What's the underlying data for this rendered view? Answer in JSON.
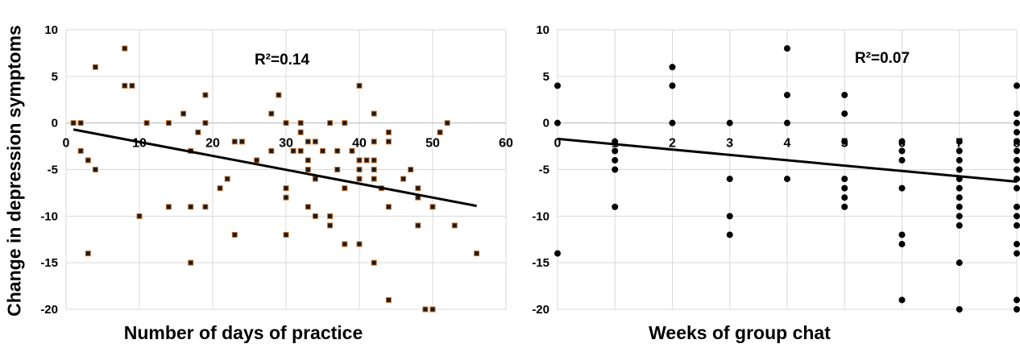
{
  "shared_ylabel": "Change in depression symptoms",
  "chart_data": [
    {
      "type": "scatter",
      "xlabel": "Number of days of practice",
      "ylabel": "Change in depression symptoms",
      "annotation": "R²=0.14",
      "xlim": [
        0,
        60
      ],
      "ylim": [
        -20,
        10
      ],
      "xticks": [
        0,
        10,
        20,
        30,
        40,
        50,
        60
      ],
      "yticks": [
        10,
        5,
        0,
        -5,
        -10,
        -15,
        -20
      ],
      "grid": true,
      "marker_color": "#1a1a1a",
      "marker_edge": "#c8702a",
      "trendline": {
        "x": [
          1,
          56
        ],
        "y": [
          -0.7,
          -8.9
        ]
      },
      "points": [
        [
          1,
          0
        ],
        [
          2,
          0
        ],
        [
          2,
          -3
        ],
        [
          3,
          -4
        ],
        [
          3,
          -14
        ],
        [
          4,
          6
        ],
        [
          4,
          -5
        ],
        [
          8,
          8
        ],
        [
          8,
          4
        ],
        [
          9,
          4
        ],
        [
          10,
          -10
        ],
        [
          11,
          0
        ],
        [
          14,
          0
        ],
        [
          14,
          -9
        ],
        [
          16,
          1
        ],
        [
          17,
          -3
        ],
        [
          17,
          -9
        ],
        [
          17,
          -15
        ],
        [
          18,
          -1
        ],
        [
          19,
          3
        ],
        [
          19,
          0
        ],
        [
          19,
          -9
        ],
        [
          21,
          -7
        ],
        [
          22,
          -6
        ],
        [
          23,
          -2
        ],
        [
          23,
          -12
        ],
        [
          24,
          -2
        ],
        [
          26,
          -4
        ],
        [
          28,
          1
        ],
        [
          28,
          -3
        ],
        [
          29,
          3
        ],
        [
          30,
          0
        ],
        [
          30,
          -7
        ],
        [
          30,
          -8
        ],
        [
          30,
          -12
        ],
        [
          31,
          -3
        ],
        [
          32,
          -1
        ],
        [
          32,
          0
        ],
        [
          32,
          -3
        ],
        [
          33,
          -2
        ],
        [
          33,
          -4
        ],
        [
          33,
          -5
        ],
        [
          33,
          -9
        ],
        [
          34,
          -2
        ],
        [
          34,
          -6
        ],
        [
          34,
          -10
        ],
        [
          35,
          -3
        ],
        [
          36,
          0
        ],
        [
          36,
          -10
        ],
        [
          36,
          -11
        ],
        [
          37,
          -3
        ],
        [
          37,
          -5
        ],
        [
          38,
          0
        ],
        [
          38,
          -7
        ],
        [
          38,
          -13
        ],
        [
          39,
          -3
        ],
        [
          40,
          4
        ],
        [
          40,
          -4
        ],
        [
          40,
          -5
        ],
        [
          40,
          -6
        ],
        [
          40,
          -13
        ],
        [
          41,
          -4
        ],
        [
          42,
          1
        ],
        [
          42,
          -2
        ],
        [
          42,
          -4
        ],
        [
          42,
          -5
        ],
        [
          42,
          -6
        ],
        [
          42,
          -15
        ],
        [
          43,
          -7
        ],
        [
          44,
          -1
        ],
        [
          44,
          -2
        ],
        [
          44,
          -9
        ],
        [
          44,
          -19
        ],
        [
          46,
          -6
        ],
        [
          47,
          -5
        ],
        [
          48,
          -7
        ],
        [
          48,
          -8
        ],
        [
          48,
          -11
        ],
        [
          49,
          -20
        ],
        [
          50,
          -9
        ],
        [
          50,
          -20
        ],
        [
          51,
          -1
        ],
        [
          52,
          0
        ],
        [
          53,
          -11
        ],
        [
          56,
          -14
        ]
      ]
    },
    {
      "type": "scatter",
      "xlabel": "Weeks of group chat",
      "ylabel": "",
      "annotation": "R²=0.07",
      "xlim": [
        0,
        8
      ],
      "ylim": [
        -20,
        10
      ],
      "xticks": [
        0,
        1,
        2,
        3,
        4,
        5,
        6,
        7,
        8
      ],
      "yticks": [
        10,
        5,
        0,
        -5,
        -10,
        -15,
        -20
      ],
      "grid": true,
      "marker_color": "#000000",
      "marker_edge": "#000000",
      "trendline": {
        "x": [
          0,
          8
        ],
        "y": [
          -1.7,
          -6.3
        ]
      },
      "points": [
        [
          0,
          4
        ],
        [
          0,
          0
        ],
        [
          0,
          -14
        ],
        [
          1,
          -2
        ],
        [
          1,
          -3
        ],
        [
          1,
          -4
        ],
        [
          1,
          -5
        ],
        [
          1,
          -9
        ],
        [
          2,
          6
        ],
        [
          2,
          4
        ],
        [
          2,
          0
        ],
        [
          3,
          0
        ],
        [
          3,
          -6
        ],
        [
          3,
          -10
        ],
        [
          3,
          -12
        ],
        [
          4,
          8
        ],
        [
          4,
          3
        ],
        [
          4,
          0
        ],
        [
          4,
          -6
        ],
        [
          5,
          3
        ],
        [
          5,
          1
        ],
        [
          5,
          -2
        ],
        [
          5,
          -6
        ],
        [
          5,
          -7
        ],
        [
          5,
          -8
        ],
        [
          5,
          -9
        ],
        [
          6,
          -2
        ],
        [
          6,
          -3
        ],
        [
          6,
          -4
        ],
        [
          6,
          -7
        ],
        [
          6,
          -12
        ],
        [
          6,
          -13
        ],
        [
          6,
          -19
        ],
        [
          7,
          -2
        ],
        [
          7,
          -3
        ],
        [
          7,
          -4
        ],
        [
          7,
          -5
        ],
        [
          7,
          -6
        ],
        [
          7,
          -7
        ],
        [
          7,
          -8
        ],
        [
          7,
          -9
        ],
        [
          7,
          -10
        ],
        [
          7,
          -11
        ],
        [
          7,
          -15
        ],
        [
          7,
          -20
        ],
        [
          8,
          4
        ],
        [
          8,
          1
        ],
        [
          8,
          0
        ],
        [
          8,
          -1
        ],
        [
          8,
          -2
        ],
        [
          8,
          -3
        ],
        [
          8,
          -4
        ],
        [
          8,
          -5
        ],
        [
          8,
          -6
        ],
        [
          8,
          -7
        ],
        [
          8,
          -9
        ],
        [
          8,
          -10
        ],
        [
          8,
          -11
        ],
        [
          8,
          -13
        ],
        [
          8,
          -14
        ],
        [
          8,
          -19
        ],
        [
          8,
          -20
        ]
      ]
    }
  ]
}
